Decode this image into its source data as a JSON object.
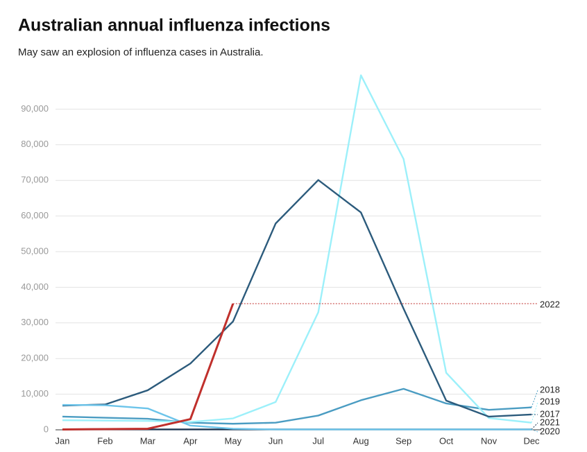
{
  "chart_data": {
    "type": "line",
    "title": "Australian annual influenza infections",
    "subtitle": "May saw an explosion of influenza cases in Australia.",
    "categories": [
      "Jan",
      "Feb",
      "Mar",
      "Apr",
      "May",
      "Jun",
      "Jul",
      "Aug",
      "Sep",
      "Oct",
      "Nov",
      "Dec"
    ],
    "series": [
      {
        "name": "2018",
        "color": "#4a9cc2",
        "values": [
          3700,
          3400,
          3100,
          2000,
          1700,
          2000,
          4000,
          8300,
          11500,
          7400,
          5600,
          6300
        ]
      },
      {
        "name": "2019",
        "color": "#9cf0fa",
        "values": [
          2700,
          2600,
          2500,
          2200,
          3200,
          7800,
          33000,
          99500,
          76000,
          16000,
          3300,
          2000
        ]
      },
      {
        "name": "2017",
        "color": "#2c5b7c",
        "values": [
          6800,
          7100,
          11100,
          18600,
          30400,
          57900,
          70100,
          61000,
          34000,
          8200,
          3700,
          4300
        ]
      },
      {
        "name": "2021",
        "color": "#1b3550",
        "values": [
          100,
          100,
          100,
          100,
          100,
          100,
          100,
          100,
          100,
          100,
          100,
          100
        ]
      },
      {
        "name": "2020",
        "color": "#6cc4ea",
        "values": [
          7000,
          6900,
          6000,
          1200,
          300,
          100,
          100,
          100,
          100,
          100,
          100,
          100
        ]
      },
      {
        "name": "2022",
        "color": "#c0302c",
        "values": [
          100,
          200,
          300,
          3000,
          35400,
          null,
          null,
          null,
          null,
          null,
          null,
          null
        ]
      }
    ],
    "ylim": [
      0,
      100000
    ],
    "yticks": [
      0,
      {
        "value": 10000,
        "label": "10,000"
      },
      {
        "value": 20000,
        "label": "20,000"
      },
      {
        "value": 30000,
        "label": "30,000"
      },
      {
        "value": 40000,
        "label": "40,000"
      },
      {
        "value": 50000,
        "label": "50,000"
      },
      {
        "value": 60000,
        "label": "60,000"
      },
      {
        "value": 70000,
        "label": "70,000"
      },
      {
        "value": 80000,
        "label": "80,000"
      },
      {
        "value": 90000,
        "label": "90,000"
      }
    ],
    "grid": true
  }
}
